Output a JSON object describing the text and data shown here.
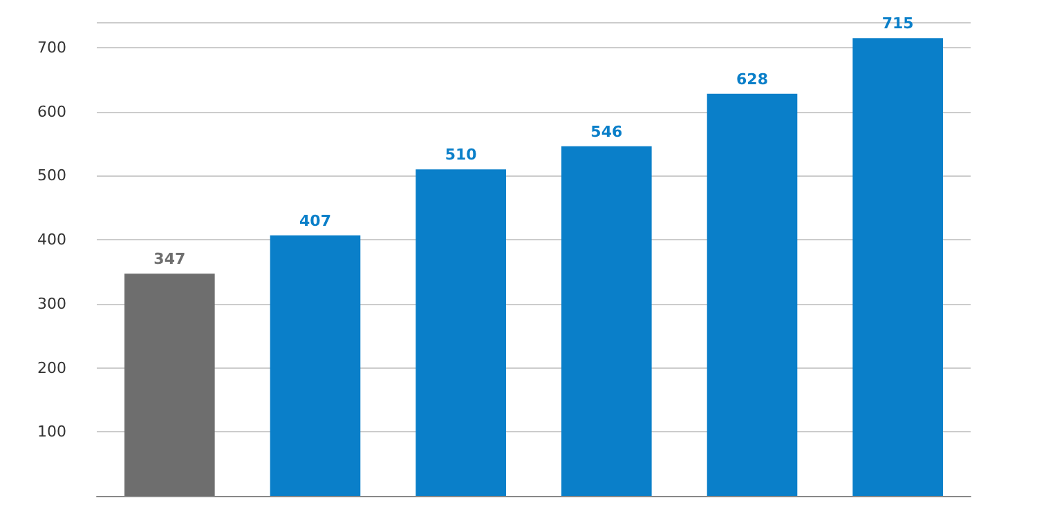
{
  "chart_data": {
    "type": "bar",
    "categories": [
      null,
      null,
      null,
      null,
      null,
      null
    ],
    "values": [
      347,
      407,
      510,
      546,
      628,
      715
    ],
    "colors": [
      "#6e6e6e",
      "#0a7fc9",
      "#0a7fc9",
      "#0a7fc9",
      "#0a7fc9",
      "#0a7fc9"
    ],
    "ylim": [
      0,
      740
    ],
    "yticks": [
      100,
      200,
      300,
      400,
      500,
      600,
      700
    ],
    "grid": "y",
    "data_labels": true
  }
}
